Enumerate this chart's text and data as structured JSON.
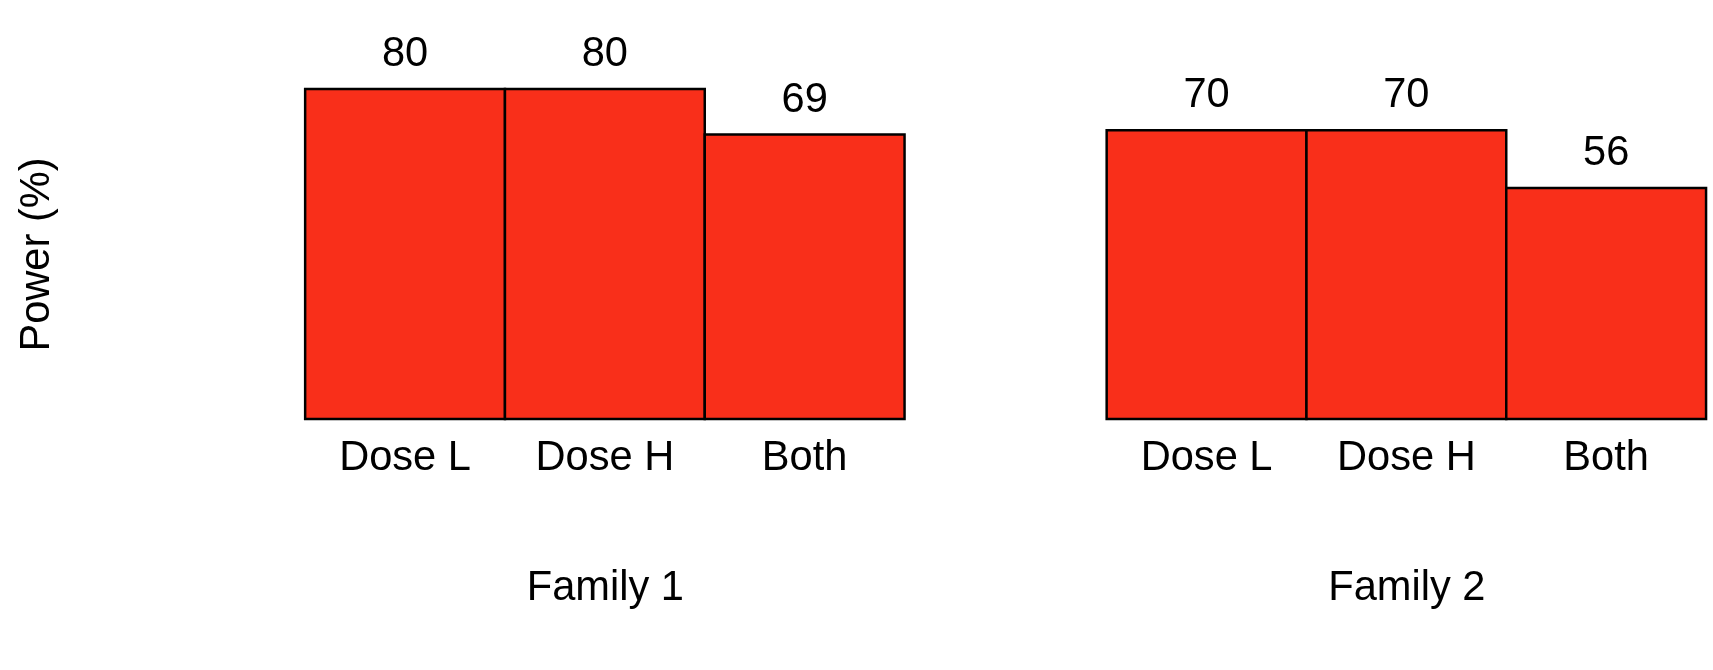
{
  "chart_data": [
    {
      "type": "bar",
      "xlabel": "Family 1",
      "ylabel": "Power (%)",
      "categories": [
        "Dose L",
        "Dose H",
        "Both"
      ],
      "values": [
        80,
        80,
        69
      ],
      "color": "#f92f1a",
      "data_labels": true,
      "tick_labels": "x",
      "grid": false
    },
    {
      "type": "bar",
      "xlabel": "Family 2",
      "categories": [
        "Dose L",
        "Dose H",
        "Both"
      ],
      "values": [
        70,
        70,
        56
      ],
      "color": "#f92f1a",
      "data_labels": true,
      "tick_labels": "x",
      "grid": false
    }
  ]
}
